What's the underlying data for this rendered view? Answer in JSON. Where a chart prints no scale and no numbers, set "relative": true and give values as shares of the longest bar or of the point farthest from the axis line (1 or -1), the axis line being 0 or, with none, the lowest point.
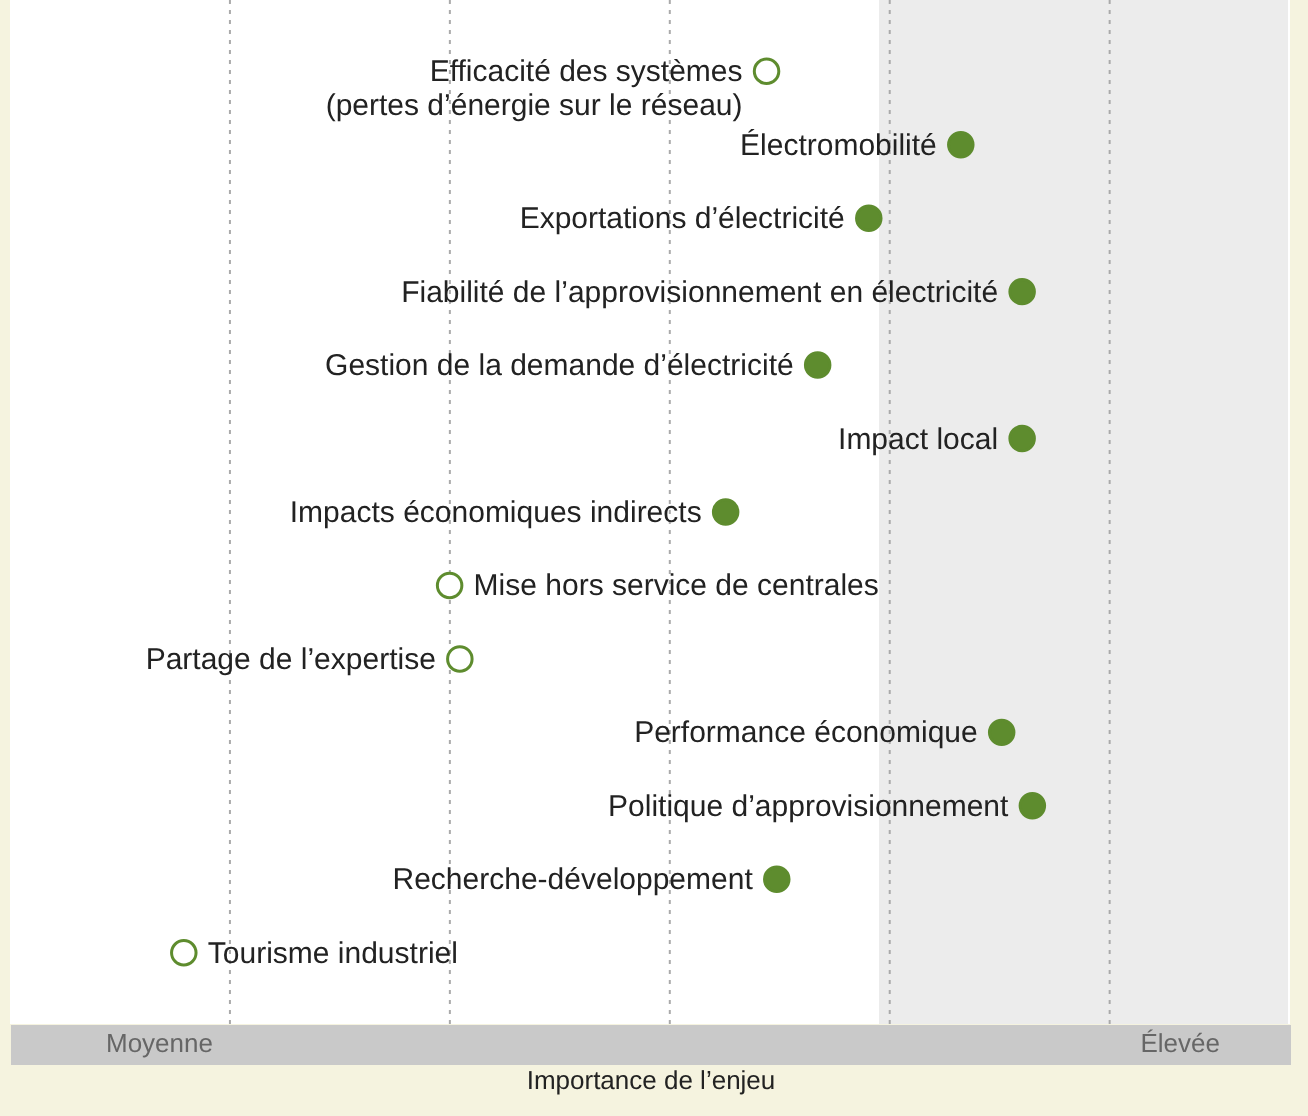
{
  "chart_data": {
    "type": "scatter",
    "orientation": "horizontal",
    "relative": true,
    "xlabel": "Importance de l’enjeu",
    "categories": [
      "Efficacité des systèmes\n(pertes d’énergie sur le réseau)",
      "Électromobilité",
      "Exportations d’électricité",
      "Fiabilité de l’approvisionnement en électricité",
      "Gestion de la demande d’électricité",
      "Impact local",
      "Impacts économiques indirects",
      "Mise hors service de centrales",
      "Partage de l’expertise",
      "Performance économique",
      "Politique d’approvisionnement",
      "Recherche-développement",
      "Tourisme industriel"
    ],
    "series": [
      {
        "color": "#5e8c2e",
        "values": [
          null,
          0.93,
          0.84,
          0.99,
          0.79,
          0.99,
          0.7,
          null,
          null,
          0.97,
          1,
          0.75,
          null
        ]
      },
      {
        "color": "#ffffff",
        "values": [
          0.74,
          null,
          null,
          null,
          null,
          null,
          null,
          0.43,
          0.44,
          null,
          null,
          null,
          0.17
        ]
      }
    ],
    "annotations": [
      "Moyenne",
      "Élevée"
    ],
    "grid": "x",
    "marker": "circle",
    "bands": [
      {
        "axis": "x",
        "from": 0.85,
        "to": 1.25,
        "color": "#ececec"
      }
    ]
  }
}
